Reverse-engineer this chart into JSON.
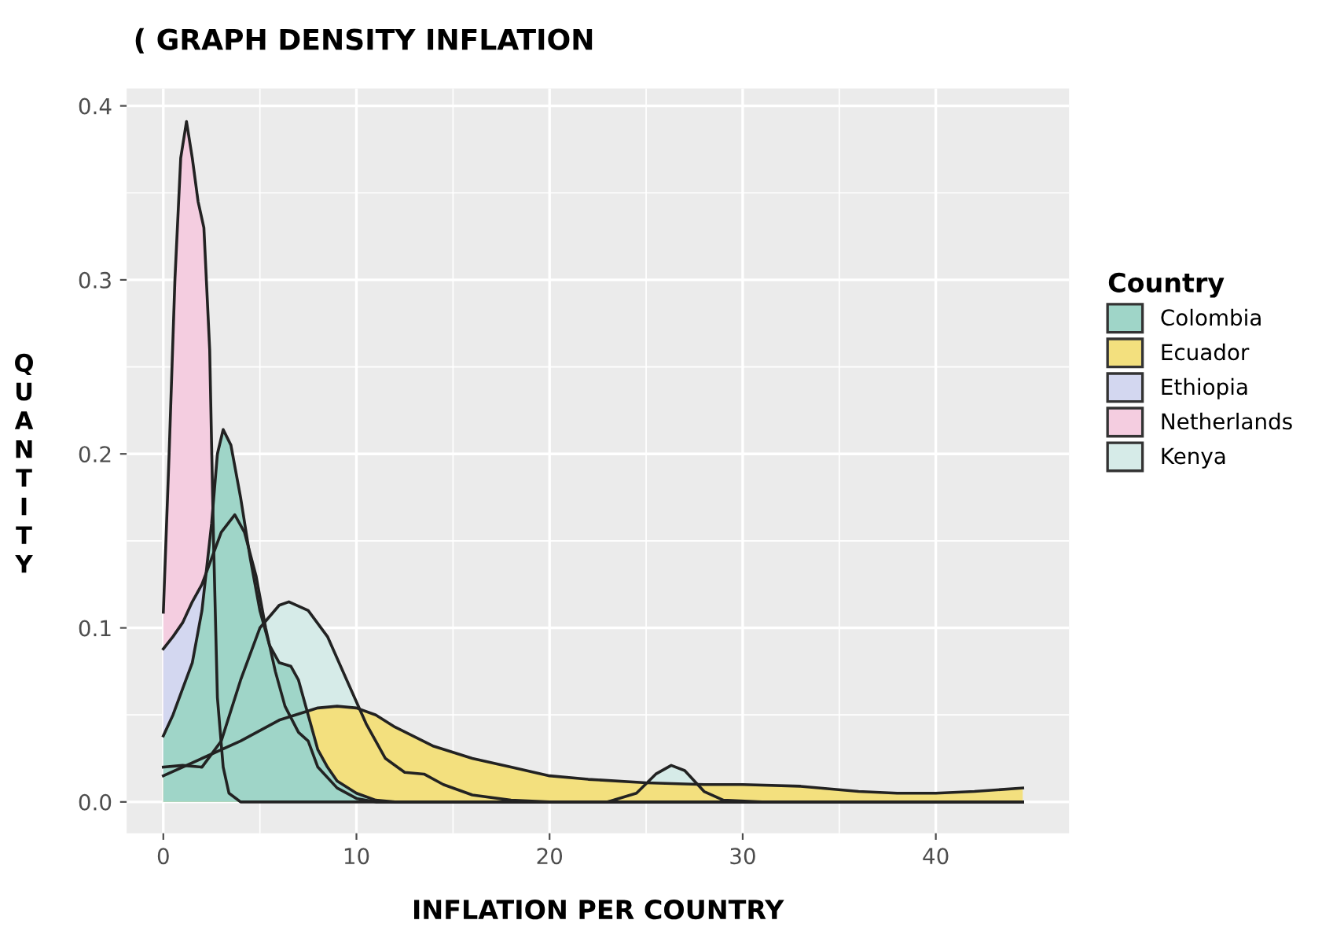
{
  "chart_data": {
    "type": "area",
    "title": "( GRAPH DENSITY INFLATION",
    "xlabel": "INFLATION PER COUNTRY",
    "ylabel": "QUANTITY",
    "legend_title": "Country",
    "legend": "right",
    "grid": true,
    "xlim": [
      -1.9,
      46.9
    ],
    "ylim": [
      -0.018,
      0.41
    ],
    "xticks": [
      0,
      10,
      20,
      30,
      40
    ],
    "yticks": [
      {
        "value": 0,
        "label": "0.0"
      },
      {
        "value": 0.1,
        "label": "0.1"
      },
      {
        "value": 0.2,
        "label": "0.2"
      },
      {
        "value": 0.3,
        "label": "0.3"
      },
      {
        "value": 0.4,
        "label": "0.4"
      }
    ],
    "series": [
      {
        "name": "Colombia",
        "color": "#9fd5c8",
        "x": [
          0,
          0.5,
          1,
          1.5,
          2,
          2.5,
          2.8,
          3.1,
          3.5,
          4,
          4.5,
          5,
          5.5,
          6,
          6.6,
          7,
          7.5,
          8,
          8.5,
          9,
          10,
          11,
          12,
          44.5
        ],
        "values": [
          0.038,
          0.05,
          0.065,
          0.08,
          0.11,
          0.16,
          0.2,
          0.214,
          0.205,
          0.175,
          0.14,
          0.11,
          0.09,
          0.08,
          0.078,
          0.07,
          0.05,
          0.03,
          0.02,
          0.012,
          0.005,
          0.001,
          0,
          0
        ]
      },
      {
        "name": "Ecuador",
        "color": "#f3e07e",
        "x": [
          0,
          2,
          4,
          6,
          8,
          9,
          10,
          11,
          12,
          14,
          16,
          18,
          20,
          22,
          25,
          28,
          30,
          33,
          36,
          38,
          40,
          42,
          44.5
        ],
        "values": [
          0.015,
          0.025,
          0.035,
          0.047,
          0.054,
          0.055,
          0.054,
          0.05,
          0.043,
          0.032,
          0.025,
          0.02,
          0.015,
          0.013,
          0.011,
          0.01,
          0.01,
          0.009,
          0.006,
          0.005,
          0.005,
          0.006,
          0.008
        ]
      },
      {
        "name": "Ethiopia",
        "color": "#d3d7f0",
        "x": [
          0,
          0.5,
          1,
          1.5,
          2,
          2.5,
          3,
          3.7,
          4.2,
          4.8,
          5.3,
          5.8,
          6.3,
          7,
          7.5,
          8,
          9,
          10,
          11,
          44.5
        ],
        "values": [
          0.088,
          0.095,
          0.103,
          0.115,
          0.125,
          0.14,
          0.155,
          0.165,
          0.155,
          0.13,
          0.1,
          0.075,
          0.055,
          0.04,
          0.035,
          0.02,
          0.008,
          0.002,
          0,
          0
        ]
      },
      {
        "name": "Netherlands",
        "color": "#f4cde0",
        "x": [
          0,
          0.3,
          0.6,
          0.9,
          1.2,
          1.5,
          1.8,
          2.1,
          2.4,
          2.6,
          2.8,
          3.1,
          3.4,
          4,
          44.5
        ],
        "values": [
          0.109,
          0.2,
          0.3,
          0.37,
          0.391,
          0.37,
          0.345,
          0.33,
          0.26,
          0.15,
          0.06,
          0.02,
          0.005,
          0,
          0
        ]
      },
      {
        "name": "Kenya",
        "color": "#d6ebe8",
        "x": [
          0,
          1,
          2,
          3,
          4,
          5,
          6,
          6.5,
          7.5,
          8.5,
          9.5,
          10.5,
          11.5,
          12.5,
          13.5,
          14.5,
          16,
          18,
          20,
          23,
          24.5,
          25.5,
          26.3,
          27,
          28,
          29,
          31,
          44.5
        ],
        "values": [
          0.02,
          0.021,
          0.02,
          0.035,
          0.07,
          0.1,
          0.113,
          0.115,
          0.11,
          0.095,
          0.07,
          0.045,
          0.025,
          0.017,
          0.016,
          0.01,
          0.004,
          0.001,
          0,
          0,
          0.005,
          0.016,
          0.021,
          0.018,
          0.006,
          0.001,
          0,
          0
        ]
      }
    ]
  }
}
